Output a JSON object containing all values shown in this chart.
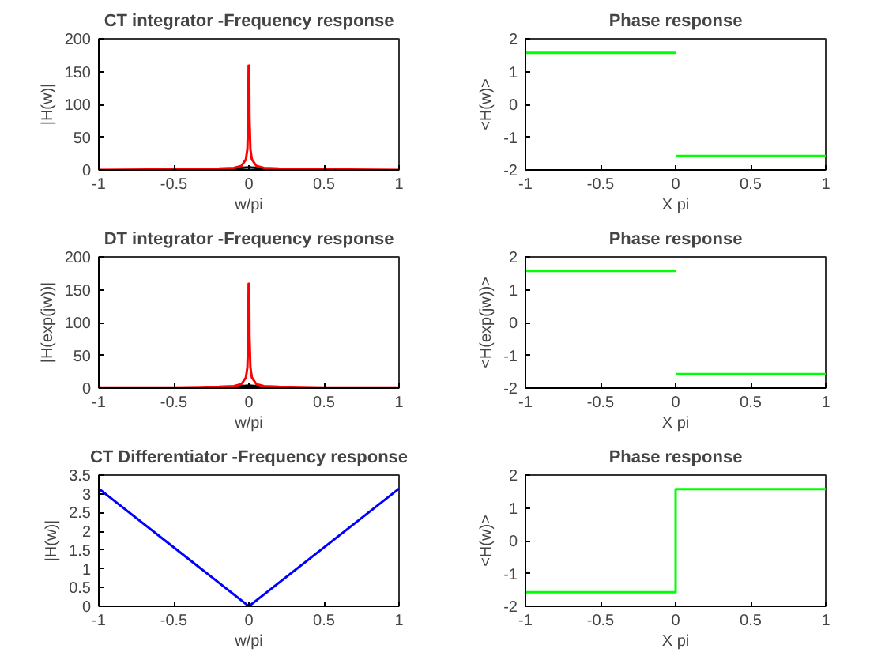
{
  "chart_data": [
    {
      "type": "line",
      "title": "CT integrator -Frequency response",
      "xlabel": "w/pi",
      "ylabel": "|H(w)|",
      "xlim": [
        -1,
        1
      ],
      "xticks": [
        -1,
        -0.5,
        0,
        0.5,
        1
      ],
      "ylim": [
        0,
        200
      ],
      "yticks": [
        0,
        50,
        100,
        150,
        200
      ],
      "grid": false,
      "series": [
        {
          "color": "#000000",
          "x": [
            -0.2,
            -0.1,
            -0.05,
            0,
            0.05,
            0.1,
            0.2
          ],
          "values": [
            1,
            2,
            3,
            4,
            3,
            2,
            1
          ]
        },
        {
          "color": "#ff0000",
          "x": [
            -1,
            -0.5,
            -0.2,
            -0.1,
            -0.05,
            -0.02,
            -0.01,
            -0.004,
            -0.002,
            0.002,
            0.004,
            0.01,
            0.02,
            0.05,
            0.1,
            0.2,
            0.5,
            1
          ],
          "values": [
            0,
            1,
            2,
            3,
            6,
            16,
            32,
            80,
            159,
            159,
            80,
            32,
            16,
            6,
            3,
            2,
            1,
            0
          ]
        }
      ]
    },
    {
      "type": "line",
      "title": "Phase response",
      "xlabel": "X pi",
      "ylabel": "<H(w)>",
      "xlim": [
        -1,
        1
      ],
      "xticks": [
        -1,
        -0.5,
        0,
        0.5,
        1
      ],
      "ylim": [
        -2,
        2
      ],
      "yticks": [
        -2,
        -1,
        0,
        1,
        2
      ],
      "grid": false,
      "series": [
        {
          "color": "#00ff00",
          "x": [
            -1,
            0
          ],
          "values": [
            1.57,
            1.57
          ]
        },
        {
          "color": "#00ff00",
          "x": [
            0,
            1
          ],
          "values": [
            -1.57,
            -1.57
          ]
        }
      ]
    },
    {
      "type": "line",
      "title": "DT integrator -Frequency response",
      "xlabel": "w/pi",
      "ylabel": "|H(exp(jw))|",
      "xlim": [
        -1,
        1
      ],
      "xticks": [
        -1,
        -0.5,
        0,
        0.5,
        1
      ],
      "ylim": [
        0,
        200
      ],
      "yticks": [
        0,
        50,
        100,
        150,
        200
      ],
      "grid": false,
      "series": [
        {
          "color": "#000000",
          "x": [
            -0.3,
            -0.1,
            -0.05,
            0,
            0.05,
            0.1,
            0.3
          ],
          "values": [
            1,
            2,
            3,
            4,
            3,
            2,
            1
          ]
        },
        {
          "color": "#ff0000",
          "x": [
            -1,
            -0.5,
            -0.2,
            -0.1,
            -0.05,
            -0.02,
            -0.01,
            -0.004,
            -0.002,
            0.002,
            0.004,
            0.01,
            0.02,
            0.05,
            0.1,
            0.2,
            0.5,
            1
          ],
          "values": [
            1,
            1,
            2,
            3,
            6,
            16,
            32,
            80,
            159,
            159,
            80,
            32,
            16,
            6,
            3,
            2,
            1,
            1
          ]
        }
      ]
    },
    {
      "type": "line",
      "title": "Phase response",
      "xlabel": "X pi",
      "ylabel": "<H(exp(jw))>",
      "xlim": [
        -1,
        1
      ],
      "xticks": [
        -1,
        -0.5,
        0,
        0.5,
        1
      ],
      "ylim": [
        -2,
        2
      ],
      "yticks": [
        -2,
        -1,
        0,
        1,
        2
      ],
      "grid": false,
      "series": [
        {
          "color": "#00ff00",
          "x": [
            -1,
            0
          ],
          "values": [
            1.57,
            1.57
          ]
        },
        {
          "color": "#00ff00",
          "x": [
            0,
            1
          ],
          "values": [
            -1.57,
            -1.57
          ]
        }
      ]
    },
    {
      "type": "line",
      "title": "CT Differentiator -Frequency response",
      "xlabel": "w/pi",
      "ylabel": "|H(w)|",
      "xlim": [
        -1,
        1
      ],
      "xticks": [
        -1,
        -0.5,
        0,
        0.5,
        1
      ],
      "ylim": [
        0,
        3.5
      ],
      "yticks": [
        0,
        0.5,
        1,
        1.5,
        2,
        2.5,
        3,
        3.5
      ],
      "grid": false,
      "series": [
        {
          "color": "#0000ff",
          "x": [
            -1,
            0,
            1
          ],
          "values": [
            3.14,
            0,
            3.14
          ]
        }
      ]
    },
    {
      "type": "line",
      "title": "Phase response",
      "xlabel": "X pi",
      "ylabel": "<H(w)>",
      "xlim": [
        -1,
        1
      ],
      "xticks": [
        -1,
        -0.5,
        0,
        0.5,
        1
      ],
      "ylim": [
        -2,
        2
      ],
      "yticks": [
        -2,
        -1,
        0,
        1,
        2
      ],
      "grid": false,
      "series": [
        {
          "color": "#00ff00",
          "x": [
            -1,
            0,
            0,
            1
          ],
          "values": [
            -1.57,
            -1.57,
            1.57,
            1.57
          ]
        }
      ]
    }
  ]
}
